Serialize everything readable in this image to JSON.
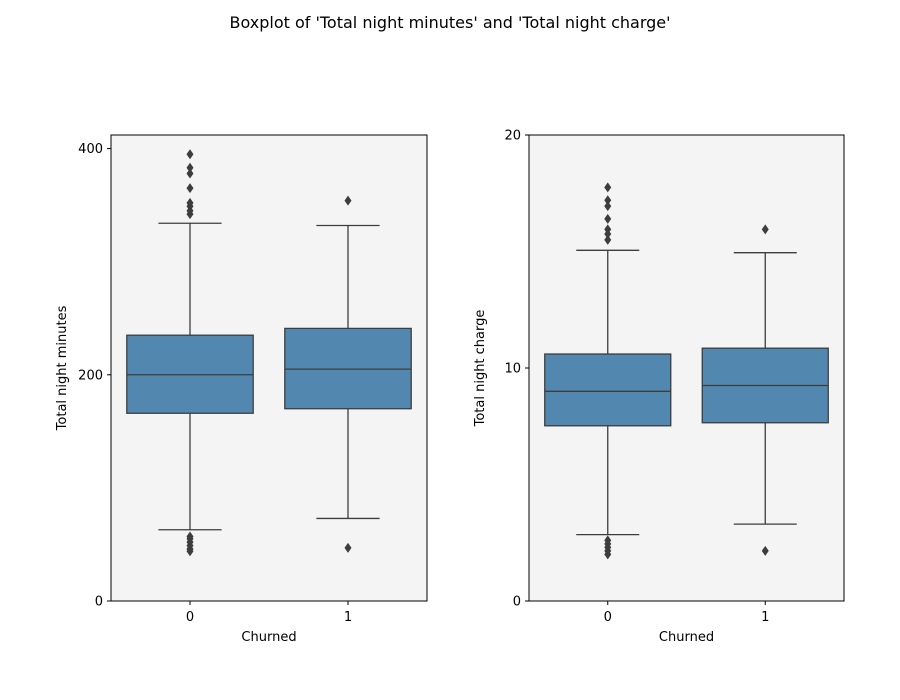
{
  "figure": {
    "title": "Boxplot of 'Total night minutes' and 'Total night charge'"
  },
  "style": {
    "panel_bg": "#f4f4f4",
    "box_fill": "#5288b0",
    "line_color": "#3d3d3d"
  },
  "chart_data": [
    {
      "type": "boxplot",
      "xlabel": "Churned",
      "ylabel": "Total night minutes",
      "ylim": [
        0,
        412
      ],
      "yticks": [
        0,
        200,
        400
      ],
      "categories": [
        "0",
        "1"
      ],
      "boxes": [
        {
          "category": "0",
          "whisker_low": 63,
          "q1": 166,
          "median": 200,
          "q3": 235,
          "whisker_high": 334,
          "outliers": [
            44,
            46,
            49,
            52,
            55,
            57,
            342,
            345,
            349,
            352,
            365,
            378,
            383,
            395
          ]
        },
        {
          "category": "1",
          "whisker_low": 73,
          "q1": 170,
          "median": 205,
          "q3": 241,
          "whisker_high": 332,
          "outliers": [
            47,
            354
          ]
        }
      ]
    },
    {
      "type": "boxplot",
      "xlabel": "Churned",
      "ylabel": "Total night charge",
      "ylim": [
        0,
        20
      ],
      "yticks": [
        0,
        10,
        20
      ],
      "categories": [
        "0",
        "1"
      ],
      "boxes": [
        {
          "category": "0",
          "whisker_low": 2.85,
          "q1": 7.52,
          "median": 9.0,
          "q3": 10.6,
          "whisker_high": 15.05,
          "outliers": [
            2.0,
            2.15,
            2.3,
            2.45,
            2.6,
            15.5,
            15.75,
            15.95,
            16.4,
            16.95,
            17.2,
            17.75
          ]
        },
        {
          "category": "1",
          "whisker_low": 3.3,
          "q1": 7.65,
          "median": 9.25,
          "q3": 10.85,
          "whisker_high": 14.95,
          "outliers": [
            2.15,
            15.95
          ]
        }
      ]
    }
  ]
}
